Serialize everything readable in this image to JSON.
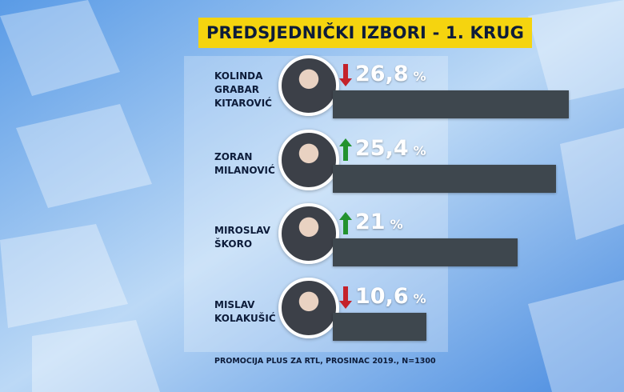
{
  "chart_data": {
    "type": "bar",
    "orientation": "horizontal",
    "title": "PREDSJEDNIČKI IZBORI - 1. KRUG",
    "categories": [
      "KOLINDA\nGRABAR\nKITAROVIĆ",
      "ZORAN\nMILANOVIĆ",
      "MIROSLAV\nŠKORO",
      "MISLAV\nKOLAKUŠIĆ"
    ],
    "values": [
      26.8,
      25.4,
      21,
      10.6
    ],
    "value_labels": [
      "26,8",
      "25,4",
      "21",
      "10,6"
    ],
    "unit": "%",
    "trend": [
      "down",
      "up",
      "up",
      "down"
    ],
    "trend_colors": {
      "up": "#23922f",
      "down": "#c4222b"
    },
    "color": "#3e474e",
    "source": "PROMOCIJA PLUS ZA RTL, PROSINAC 2019., N=1300"
  }
}
